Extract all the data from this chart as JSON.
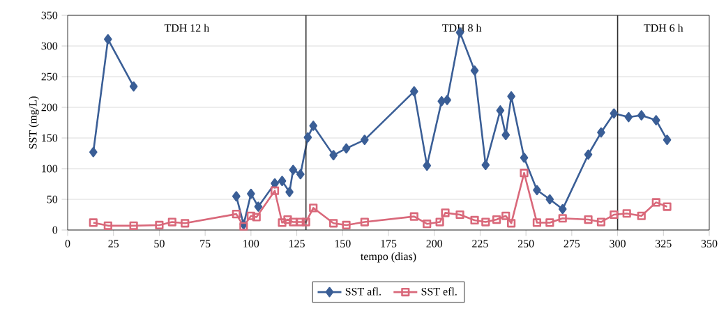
{
  "chart_data": {
    "type": "line",
    "xlabel": "tempo (dias)",
    "ylabel": "SST (mg/L)",
    "xlim": [
      0,
      350
    ],
    "xticks": [
      0,
      25,
      50,
      75,
      100,
      125,
      150,
      175,
      200,
      225,
      250,
      275,
      300,
      325,
      350
    ],
    "ylim": [
      0,
      350
    ],
    "yticks": [
      0,
      50,
      100,
      150,
      200,
      250,
      300,
      350
    ],
    "grid": "y",
    "legend": "bottom",
    "series": [
      {
        "name": "SST afl.",
        "color": "#3a5e96",
        "marker": "diamond",
        "x": [
          14,
          22,
          36,
          64,
          92,
          96,
          100,
          104,
          113,
          117,
          121,
          123,
          127,
          131,
          134,
          145,
          152,
          162,
          189,
          196,
          204,
          207,
          214,
          222,
          228,
          236,
          239,
          242,
          249,
          256,
          263,
          270,
          284,
          291,
          298,
          306,
          313,
          321,
          327
        ],
        "values": [
          127,
          311,
          234,
          null,
          55,
          9,
          59,
          38,
          76,
          80,
          62,
          98,
          91,
          151,
          170,
          122,
          133,
          147,
          226,
          105,
          210,
          212,
          322,
          260,
          106,
          195,
          155,
          218,
          118,
          65,
          50,
          34,
          123,
          159,
          190,
          184,
          187,
          179,
          147
        ]
      },
      {
        "name": "SST efl.",
        "color": "#d9687a",
        "marker": "square",
        "x": [
          14,
          22,
          36,
          50,
          57,
          64,
          92,
          96,
          100,
          103,
          113,
          117,
          120,
          123,
          127,
          130,
          134,
          145,
          152,
          162,
          189,
          196,
          203,
          206,
          214,
          222,
          228,
          234,
          239,
          242,
          249,
          256,
          263,
          270,
          284,
          291,
          298,
          305,
          313,
          321,
          327
        ],
        "values": [
          12,
          7,
          7,
          8,
          13,
          11,
          26,
          6,
          23,
          21,
          64,
          12,
          17,
          13,
          13,
          13,
          36,
          11,
          8,
          13,
          22,
          10,
          13,
          28,
          25,
          16,
          13,
          17,
          23,
          11,
          93,
          12,
          12,
          19,
          17,
          13,
          25,
          27,
          23,
          45,
          38
        ]
      }
    ],
    "ref_lines": [
      {
        "axis": "x",
        "value": 130,
        "color": "#303030",
        "line_style": "solid"
      },
      {
        "axis": "x",
        "value": 300,
        "color": "#303030",
        "line_style": "solid"
      }
    ],
    "annotations": [
      "TDH 12 h",
      "TDH 8 h",
      "TDH 6 h"
    ]
  }
}
